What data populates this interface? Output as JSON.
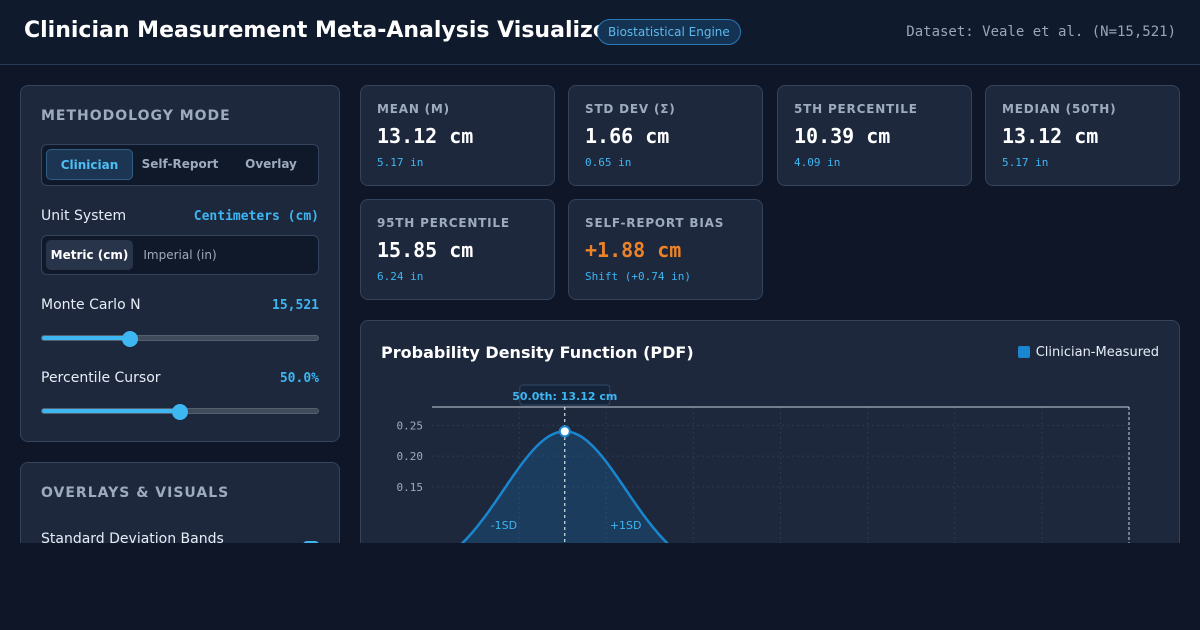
{
  "header": {
    "title": "Clinician Measurement Meta-Analysis Visualizer",
    "badge": "Biostatistical Engine",
    "dataset": "Dataset: Veale et al. (N=15,521)"
  },
  "methodology": {
    "title": "METHODOLOGY MODE",
    "modes": [
      "Clinician",
      "Self-Report",
      "Overlay"
    ],
    "selected_mode": "Clinician",
    "unit_label": "Unit System",
    "unit_value": "Centimeters (cm)",
    "units": [
      "Metric (cm)",
      "Imperial (in)"
    ],
    "selected_unit": "Metric (cm)",
    "mc_label": "Monte Carlo N",
    "mc_value": "15,521",
    "mc_fraction": 0.32,
    "pct_label": "Percentile Cursor",
    "pct_value": "50.0%",
    "pct_fraction": 0.5
  },
  "overlays": {
    "title": "OVERLAYS & VISUALS",
    "sd_bands_label": "Standard Deviation Bands",
    "sd_bands_checked": true
  },
  "stats": [
    {
      "label": "MEAN (Μ)",
      "value": "13.12 cm",
      "sub": "5.17 in",
      "highlight": false
    },
    {
      "label": "STD DEV (Σ)",
      "value": "1.66 cm",
      "sub": "0.65 in",
      "highlight": false
    },
    {
      "label": "5TH PERCENTILE",
      "value": "10.39 cm",
      "sub": "4.09 in",
      "highlight": false
    },
    {
      "label": "MEDIAN (50TH)",
      "value": "13.12 cm",
      "sub": "5.17 in",
      "highlight": false
    },
    {
      "label": "95TH PERCENTILE",
      "value": "15.85 cm",
      "sub": "6.24 in",
      "highlight": false
    },
    {
      "label": "SELF-REPORT BIAS",
      "value": "+1.88 cm",
      "sub": "Shift (+0.74 in)",
      "highlight": true
    }
  ],
  "chart": {
    "title": "Probability Density Function (PDF)",
    "legend": "Clinician-Measured",
    "cursor_label": "50.0th: 13.12 cm",
    "sd_minus": "-1SD",
    "sd_plus": "+1SD"
  },
  "chart_data": {
    "type": "area",
    "title": "Probability Density Function (PDF)",
    "series": [
      {
        "name": "Clinician-Measured",
        "mean": 13.12,
        "sd": 1.66
      }
    ],
    "yticks": [
      "0.25",
      "0.20",
      "0.15"
    ],
    "y_tick_values": [
      0.25,
      0.2,
      0.15
    ],
    "ylim": [
      0,
      0.28
    ],
    "xlim": [
      9.5,
      28.5
    ],
    "cursor_x": 13.12,
    "grid": true,
    "legend_position": "top-right"
  },
  "colors": {
    "accent": "#3db6f2",
    "bias": "#ee8227",
    "curve": "#1a86d0"
  }
}
